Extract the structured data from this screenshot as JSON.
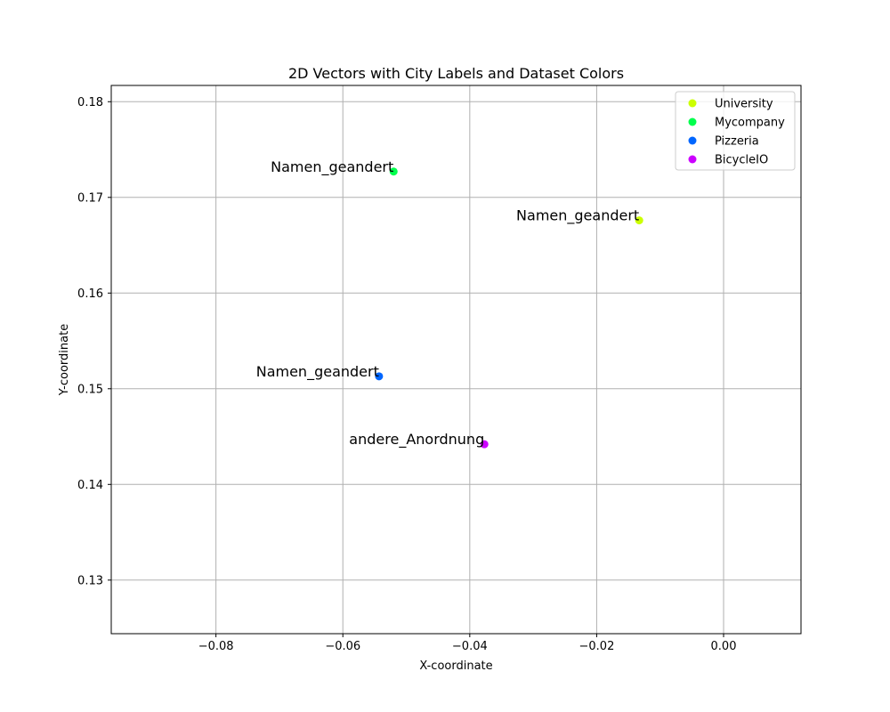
{
  "chart_data": {
    "type": "scatter",
    "title": "2D Vectors with City Labels and Dataset Colors",
    "xlabel": "X-coordinate",
    "ylabel": "Y-coordinate",
    "xlim": [
      -0.0965,
      0.0122
    ],
    "ylim": [
      0.1244,
      0.1817
    ],
    "xticks": [
      -0.08,
      -0.06,
      -0.04,
      -0.02,
      0.0
    ],
    "xtick_labels": [
      "−0.08",
      "−0.06",
      "−0.04",
      "−0.02",
      "0.00"
    ],
    "yticks": [
      0.13,
      0.14,
      0.15,
      0.16,
      0.17,
      0.18
    ],
    "ytick_labels": [
      "0.13",
      "0.14",
      "0.15",
      "0.16",
      "0.17",
      "0.18"
    ],
    "grid": true,
    "legend_position": "top-right",
    "series": [
      {
        "name": "University",
        "color": "#ccff00",
        "points": [
          {
            "x": -0.0133,
            "y": 0.1676,
            "label": "Namen_geandert"
          }
        ]
      },
      {
        "name": "Mycompany",
        "color": "#00ff4d",
        "points": [
          {
            "x": -0.052,
            "y": 0.1727,
            "label": "Namen_geandert"
          }
        ]
      },
      {
        "name": "Pizzeria",
        "color": "#0066ff",
        "points": [
          {
            "x": -0.0543,
            "y": 0.1513,
            "label": "Namen_geandert"
          }
        ]
      },
      {
        "name": "BicycleIO",
        "color": "#cc00ff",
        "points": [
          {
            "x": -0.0377,
            "y": 0.1442,
            "label": "andere_Anordnung"
          }
        ]
      }
    ]
  }
}
